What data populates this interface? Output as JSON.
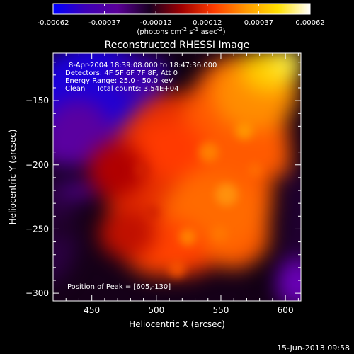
{
  "chart_data": {
    "type": "heatmap",
    "title": "Reconstructed RHESSI Image",
    "xlabel": "Heliocentric X (arcsec)",
    "ylabel": "Heliocentric Y (arcsec)",
    "xlim": [
      420,
      612
    ],
    "ylim": [
      -306,
      -113
    ],
    "x_ticks": [
      450,
      500,
      550,
      600
    ],
    "y_ticks": [
      -150,
      -200,
      -250,
      -300
    ],
    "colorbar": {
      "ticks": [
        "-0.00062",
        "-0.00037",
        "-0.00012",
        "0.00012",
        "0.00037",
        "0.00062"
      ],
      "range": [
        -0.00062,
        0.00062
      ],
      "unit_text": "(photons cm",
      "unit_sup1": "-2",
      "unit_mid": " s",
      "unit_sup2": "-1",
      "unit_mid2": " asec",
      "unit_sup3": "-2",
      "unit_end": ")",
      "colors": [
        "#0000ff",
        "#3d00b8",
        "#5a0098",
        "#1a0022",
        "#a00000",
        "#ff3c00",
        "#ff9800",
        "#ffe000",
        "#ffffff"
      ]
    },
    "annotations": [
      "8-Apr-2004 18:39:08.000 to 18:47:36.000",
      "Detectors: 4F 5F 6F 7F 8F, Att 0",
      "Energy Range: 25.0 - 50.0 keV",
      "Clean     Total counts: 3.54E+04"
    ],
    "peak_label": "Position of Peak = [605,-130]",
    "peak": [
      605,
      -130
    ],
    "grid": false
  },
  "footer": "15-Jun-2013 09:58"
}
